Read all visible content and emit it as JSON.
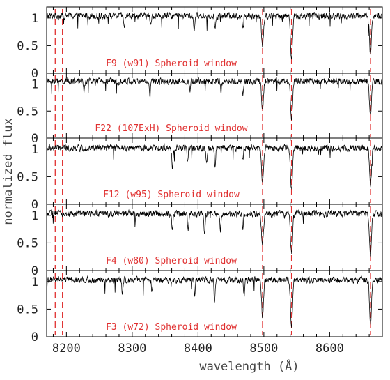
{
  "chart_data": {
    "type": "line",
    "xlabel": "wavelength (Å)",
    "ylabel": "normalized flux",
    "xlim": [
      8170,
      8680
    ],
    "ylim": [
      0,
      1.2
    ],
    "x_ticks": [
      8200,
      8300,
      8400,
      8500,
      8600
    ],
    "x_tick_labels": [
      "8200",
      "8300",
      "8400",
      "8500",
      "8600"
    ],
    "y_ticks": [
      0,
      0.5,
      1
    ],
    "y_tick_labels": [
      "0",
      "0.5",
      "1"
    ],
    "grid": false,
    "reference_lines_x": [
      8183,
      8194,
      8498,
      8542,
      8662
    ],
    "reference_line_color": "#e03030",
    "line_color": "#000000",
    "label_color": "#e03030",
    "panels": [
      {
        "label": "F9 (w91) Spheroid window",
        "continuum": 1.04,
        "absorption": [
          {
            "x": 8498,
            "depth": 0.55
          },
          {
            "x": 8542,
            "depth": 0.75
          },
          {
            "x": 8662,
            "depth": 0.7
          },
          {
            "x": 8288,
            "depth": 0.25
          },
          {
            "x": 8328,
            "depth": 0.2
          },
          {
            "x": 8394,
            "depth": 0.3
          },
          {
            "x": 8426,
            "depth": 0.25
          },
          {
            "x": 8468,
            "depth": 0.2
          }
        ]
      },
      {
        "label": "F22 (107ExH) Spheroid window",
        "continuum": 1.05,
        "absorption": [
          {
            "x": 8498,
            "depth": 0.5
          },
          {
            "x": 8542,
            "depth": 0.7
          },
          {
            "x": 8662,
            "depth": 0.65
          },
          {
            "x": 8227,
            "depth": 0.2
          },
          {
            "x": 8327,
            "depth": 0.25
          },
          {
            "x": 8388,
            "depth": 0.2
          },
          {
            "x": 8435,
            "depth": 0.2
          },
          {
            "x": 8468,
            "depth": 0.25
          }
        ]
      },
      {
        "label": "F12 (w95) Spheroid window",
        "continuum": 1.02,
        "absorption": [
          {
            "x": 8498,
            "depth": 0.6
          },
          {
            "x": 8542,
            "depth": 0.75
          },
          {
            "x": 8662,
            "depth": 0.7
          },
          {
            "x": 8361,
            "depth": 0.4
          },
          {
            "x": 8384,
            "depth": 0.3
          },
          {
            "x": 8413,
            "depth": 0.3
          },
          {
            "x": 8426,
            "depth": 0.35
          },
          {
            "x": 8468,
            "depth": 0.25
          }
        ]
      },
      {
        "label": "F4 (w80) Spheroid window",
        "continuum": 1.03,
        "absorption": [
          {
            "x": 8498,
            "depth": 0.55
          },
          {
            "x": 8542,
            "depth": 0.75
          },
          {
            "x": 8662,
            "depth": 0.75
          },
          {
            "x": 8361,
            "depth": 0.3
          },
          {
            "x": 8385,
            "depth": 0.35
          },
          {
            "x": 8410,
            "depth": 0.4
          },
          {
            "x": 8434,
            "depth": 0.3
          },
          {
            "x": 8468,
            "depth": 0.25
          }
        ]
      },
      {
        "label": "F3 (w72) Spheroid window",
        "continuum": 1.03,
        "absorption": [
          {
            "x": 8498,
            "depth": 0.65
          },
          {
            "x": 8542,
            "depth": 0.85
          },
          {
            "x": 8662,
            "depth": 0.8
          },
          {
            "x": 8285,
            "depth": 0.3
          },
          {
            "x": 8330,
            "depth": 0.25
          },
          {
            "x": 8395,
            "depth": 0.3
          },
          {
            "x": 8425,
            "depth": 0.4
          },
          {
            "x": 8470,
            "depth": 0.3
          }
        ]
      }
    ]
  }
}
